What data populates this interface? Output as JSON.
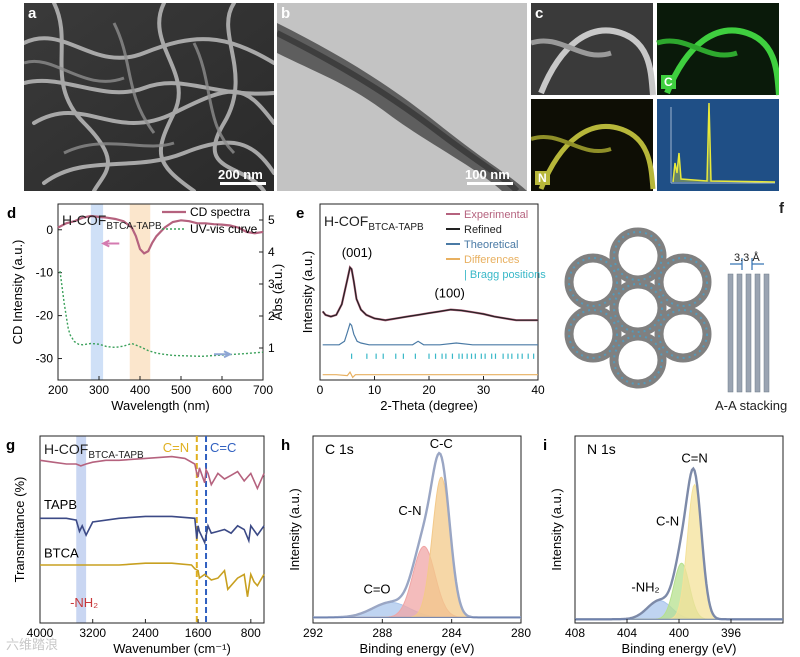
{
  "panels": {
    "a": {
      "label": "a",
      "scale_bar": "200 nm"
    },
    "b": {
      "label": "b",
      "scale_bar": "100 nm"
    },
    "c": {
      "label": "c",
      "tiles": {
        "C": "C",
        "N": "N"
      }
    },
    "f": {
      "label": "f",
      "spacing": "3.3 Å",
      "caption": "A-A stacking"
    }
  },
  "chart_data": [
    {
      "id": "d",
      "type": "line",
      "label": "d",
      "title": {
        "main": "H-COF",
        "sub": "BTCA-TAPB"
      },
      "xlabel": "Wavelength (nm)",
      "ylabel": "CD Intensity (a.u.)",
      "y2label": "Abs (a.u.)",
      "xlim": [
        200,
        700
      ],
      "ylim": [
        -35,
        6
      ],
      "y2lim": [
        0,
        5.5
      ],
      "xticks": [
        200,
        300,
        400,
        500,
        600,
        700
      ],
      "yticks": [
        0,
        -10,
        -20,
        -30
      ],
      "y2ticks": [
        5,
        4,
        3,
        2,
        1
      ],
      "bands": [
        {
          "range": [
            280,
            310
          ],
          "color": "#cfe0f7"
        },
        {
          "range": [
            375,
            425
          ],
          "color": "#fbe6cc"
        }
      ],
      "series": [
        {
          "name": "CD spectra",
          "axis": "left",
          "color": "#b5627e",
          "x": [
            200,
            220,
            240,
            260,
            280,
            300,
            320,
            340,
            360,
            380,
            390,
            400,
            410,
            420,
            430,
            440,
            460,
            480,
            500,
            520,
            540,
            560,
            580,
            600,
            620,
            640,
            660,
            680,
            700
          ],
          "y": [
            0.5,
            1.5,
            2.0,
            2.8,
            3.2,
            3.0,
            2.8,
            2.5,
            2.0,
            0.5,
            -1.5,
            -4.5,
            -5.5,
            -5.0,
            -3.0,
            -1.5,
            0.5,
            1.8,
            2.2,
            2.0,
            1.5,
            1.5,
            1.3,
            1.2,
            1.0,
            0.5,
            -0.5,
            -0.8,
            -0.5
          ]
        },
        {
          "name": "UV-vis curve",
          "axis": "right",
          "color": "#3aa05a",
          "dashed": true,
          "x": [
            205,
            210,
            215,
            220,
            225,
            230,
            240,
            250,
            260,
            280,
            300,
            320,
            340,
            360,
            380,
            400,
            420,
            440,
            460,
            480,
            500,
            550,
            600,
            650,
            700
          ],
          "y": [
            3.4,
            2.9,
            2.4,
            2.0,
            1.6,
            1.4,
            1.2,
            1.12,
            1.1,
            1.14,
            1.12,
            1.04,
            1.02,
            1.06,
            1.14,
            1.04,
            0.92,
            0.84,
            0.8,
            0.77,
            0.76,
            0.74,
            0.78,
            0.82,
            0.87
          ]
        }
      ],
      "arrows": [
        {
          "x": 330,
          "y": -3.2,
          "dir": "left",
          "color": "#d47ab0"
        },
        {
          "x": 600,
          "y": -29,
          "dir": "right",
          "color": "#8ea6d4"
        }
      ]
    },
    {
      "id": "e",
      "type": "line",
      "label": "e",
      "title": {
        "main": "H-COF",
        "sub": "BTCA-TAPB"
      },
      "xlabel": "2-Theta (degree)",
      "ylabel": "Intensity (a.u.)",
      "xlim": [
        0,
        40
      ],
      "ylim": [
        0,
        1
      ],
      "xticks": [
        0,
        10,
        20,
        30,
        40
      ],
      "legend": [
        "Experimental",
        "Refined",
        "Theoretical",
        "Differences",
        "Bragg positions"
      ],
      "legend_colors": [
        "#b5627e",
        "#222222",
        "#4a7aa5",
        "#e8b060",
        "#39b8c8"
      ],
      "annotations": [
        {
          "text": "(001)",
          "x": 4.0,
          "y": 0.7
        },
        {
          "text": "(100)",
          "x": 21.0,
          "y": 0.47
        }
      ],
      "series": [
        {
          "name": "Experimental",
          "color": "#b5627e",
          "x": [
            0.5,
            1,
            2,
            3,
            4,
            5,
            5.5,
            5.8,
            6.2,
            6.7,
            7.5,
            8.5,
            10,
            12,
            14,
            16,
            18,
            20,
            22,
            24,
            26,
            28,
            30,
            32,
            34,
            36,
            38,
            40
          ],
          "y": [
            0.39,
            0.37,
            0.36,
            0.37,
            0.43,
            0.57,
            0.64,
            0.63,
            0.56,
            0.46,
            0.4,
            0.37,
            0.35,
            0.34,
            0.35,
            0.36,
            0.37,
            0.38,
            0.39,
            0.4,
            0.395,
            0.385,
            0.375,
            0.36,
            0.35,
            0.34,
            0.34,
            0.34
          ]
        },
        {
          "name": "Refined",
          "color": "#222222",
          "x": [
            0.5,
            1,
            2,
            3,
            4,
            5,
            5.5,
            5.8,
            6.2,
            6.7,
            7.5,
            8.5,
            10,
            12,
            14,
            16,
            18,
            20,
            22,
            24,
            26,
            28,
            30,
            32,
            34,
            36,
            38,
            40
          ],
          "y": [
            0.39,
            0.37,
            0.36,
            0.37,
            0.43,
            0.57,
            0.64,
            0.63,
            0.56,
            0.46,
            0.4,
            0.37,
            0.35,
            0.34,
            0.35,
            0.36,
            0.37,
            0.38,
            0.39,
            0.4,
            0.395,
            0.385,
            0.375,
            0.36,
            0.35,
            0.34,
            0.34,
            0.34
          ]
        },
        {
          "name": "Theoretical",
          "color": "#4a7aa5",
          "x": [
            0.5,
            2,
            3.5,
            4.5,
            5,
            5.5,
            5.8,
            6.2,
            6.8,
            7.5,
            9,
            11,
            14,
            17,
            18,
            19,
            22,
            25,
            28,
            32,
            36,
            40
          ],
          "y": [
            0.2,
            0.2,
            0.2,
            0.22,
            0.27,
            0.32,
            0.31,
            0.26,
            0.22,
            0.21,
            0.2,
            0.2,
            0.2,
            0.2,
            0.22,
            0.2,
            0.2,
            0.21,
            0.2,
            0.2,
            0.2,
            0.2
          ]
        },
        {
          "name": "Differences",
          "color": "#e8b060",
          "x": [
            0.5,
            3,
            5,
            5.5,
            6,
            6.5,
            8,
            12,
            16,
            20,
            25,
            30,
            35,
            40
          ],
          "y": [
            0.03,
            0.03,
            0.025,
            0.045,
            0.015,
            0.03,
            0.03,
            0.03,
            0.03,
            0.03,
            0.03,
            0.03,
            0.03,
            0.03
          ]
        }
      ],
      "bragg_positions": [
        5.8,
        8.6,
        10.3,
        11.6,
        13.9,
        15.3,
        17.5,
        20.0,
        21.2,
        22.4,
        23.1,
        24.3,
        25.5,
        26.1,
        27.0,
        27.8,
        28.5,
        29.6,
        30.3,
        31.5,
        32.2,
        33.6,
        34.5,
        35.2,
        36.3,
        37.1,
        38.2,
        39.2
      ]
    },
    {
      "id": "g",
      "type": "line",
      "label": "g",
      "title": {
        "main": "H-COF",
        "sub": "BTCA-TAPB"
      },
      "xlabel": "Wavenumber (cm⁻¹)",
      "ylabel": "Transmittance (%)",
      "xlim": [
        4000,
        600
      ],
      "xticks": [
        4000,
        3200,
        2400,
        1600,
        800
      ],
      "band": {
        "range": [
          3450,
          3300
        ],
        "color": "#c9d6f2"
      },
      "markers": [
        {
          "text": "C=N",
          "x": 1620,
          "color": "#e0b020"
        },
        {
          "text": "C=C",
          "x": 1480,
          "color": "#3060c0"
        }
      ],
      "annotation": "-NH₂",
      "series": [
        {
          "name": "H-COF",
          "color": "#b5627e",
          "offset": 0.8,
          "x": [
            4000,
            3800,
            3600,
            3450,
            3380,
            3300,
            3200,
            3000,
            2800,
            2400,
            2000,
            1800,
            1650,
            1620,
            1600,
            1580,
            1500,
            1480,
            1450,
            1400,
            1300,
            1200,
            1100,
            1000,
            900,
            850,
            800,
            700,
            600
          ],
          "y": [
            0.07,
            0.06,
            0.05,
            0.05,
            0.04,
            0.05,
            0.06,
            0.07,
            0.07,
            0.08,
            0.09,
            0.08,
            0.05,
            0.0,
            -0.02,
            0.03,
            -0.05,
            0.02,
            0.0,
            -0.06,
            0.0,
            -0.03,
            -0.01,
            0.01,
            -0.04,
            -0.02,
            0.0,
            -0.08,
            0.0
          ]
        },
        {
          "name": "TAPB",
          "color": "#3c4a86",
          "offset": 0.52,
          "x": [
            4000,
            3600,
            3450,
            3400,
            3360,
            3300,
            3200,
            2800,
            2400,
            2000,
            1650,
            1620,
            1600,
            1580,
            1500,
            1450,
            1400,
            1300,
            1200,
            1100,
            1000,
            900,
            830,
            800,
            700,
            600
          ],
          "y": [
            0.04,
            0.04,
            0.03,
            -0.03,
            0.0,
            -0.05,
            0.02,
            0.04,
            0.05,
            0.05,
            0.04,
            -0.07,
            0.0,
            -0.03,
            -0.09,
            0.0,
            -0.04,
            -0.03,
            -0.02,
            -0.04,
            0.0,
            -0.02,
            -0.08,
            0.0,
            -0.05,
            0.0
          ]
        },
        {
          "name": "BTCA",
          "color": "#c8a020",
          "offset": 0.26,
          "x": [
            4000,
            3600,
            3200,
            2800,
            2400,
            2000,
            1700,
            1650,
            1600,
            1580,
            1500,
            1400,
            1300,
            1200,
            1150,
            1000,
            900,
            850,
            800,
            750,
            700,
            600
          ],
          "y": [
            0.05,
            0.05,
            0.05,
            0.05,
            0.06,
            0.06,
            0.05,
            0.03,
            0.02,
            -0.02,
            0.0,
            -0.03,
            -0.02,
            0.02,
            -0.08,
            -0.02,
            0.0,
            -0.12,
            0.0,
            -0.04,
            -0.06,
            0.0
          ]
        }
      ]
    },
    {
      "id": "h",
      "type": "area",
      "label": "h",
      "title": "C 1s",
      "xlabel": "Binding energy (eV)",
      "ylabel": "Intensity (a.u.)",
      "xlim": [
        292,
        280
      ],
      "xticks": [
        292,
        288,
        284,
        280
      ],
      "peaks": [
        {
          "name": "C-C",
          "center": 284.6,
          "height": 0.75,
          "fwhm": 1.2,
          "color": "#f3c98a"
        },
        {
          "name": "C-N",
          "center": 285.6,
          "height": 0.38,
          "fwhm": 1.5,
          "color": "#f0a5a5"
        },
        {
          "name": "C=O",
          "center": 287.5,
          "height": 0.08,
          "fwhm": 2.5,
          "color": "#a9c5ec"
        }
      ],
      "baseline": 0.03,
      "envelope_color": "#9aa6c4"
    },
    {
      "id": "i",
      "type": "area",
      "label": "i",
      "title": "N 1s",
      "xlabel": "Binding energy (eV)",
      "ylabel": "Intensity (a.u.)",
      "xlim": [
        408,
        392
      ],
      "xticks": [
        408,
        404,
        400,
        396
      ],
      "peaks": [
        {
          "name": "C=N",
          "center": 398.8,
          "height": 0.72,
          "fwhm": 1.3,
          "color": "#f4e29a"
        },
        {
          "name": "C-N",
          "center": 399.8,
          "height": 0.3,
          "fwhm": 1.4,
          "color": "#b6e08e"
        },
        {
          "name": "-NH₂",
          "center": 401.5,
          "height": 0.1,
          "fwhm": 2.2,
          "color": "#a9c5ec"
        }
      ],
      "baseline": 0.02,
      "envelope_color": "#7d8aa8"
    }
  ],
  "watermark": "六维踏浪"
}
